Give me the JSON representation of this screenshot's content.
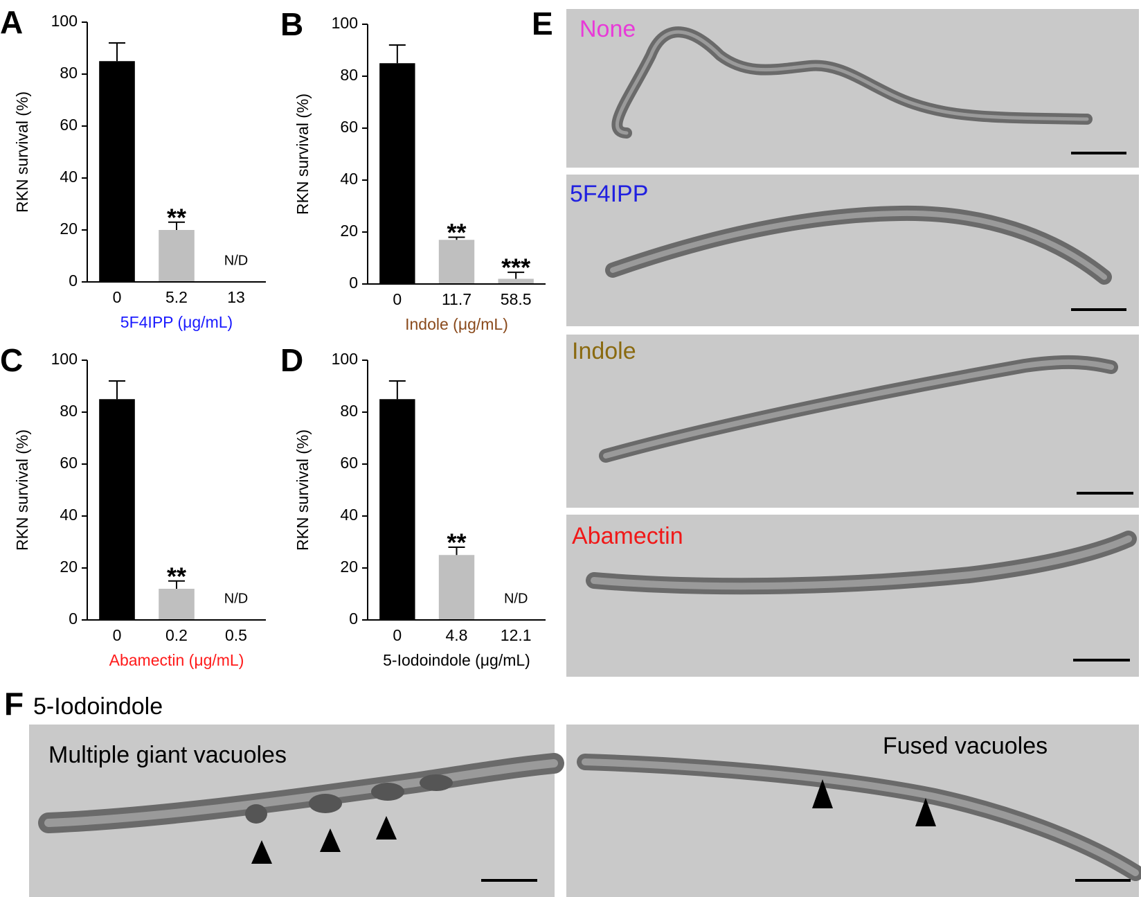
{
  "chart_data": [
    {
      "type": "bar",
      "panel": "A",
      "ylabel": "RKN survival (%)",
      "xlabel": "5F4IPP (μg/mL)",
      "xlabel_color": "#1a1aff",
      "categories": [
        "0",
        "5.2",
        "13"
      ],
      "values": [
        85,
        20,
        null
      ],
      "errors": [
        7,
        3,
        null
      ],
      "annotations": [
        null,
        "**",
        "N/D"
      ],
      "colors": [
        "#000000",
        "#bfbfbf",
        "#bfbfbf"
      ],
      "ylim": [
        0,
        100
      ],
      "yticks": [
        0,
        20,
        40,
        60,
        80,
        100
      ]
    },
    {
      "type": "bar",
      "panel": "B",
      "ylabel": "RKN survival (%)",
      "xlabel": "Indole (μg/mL)",
      "xlabel_color": "#8a4a1c",
      "categories": [
        "0",
        "11.7",
        "58.5"
      ],
      "values": [
        85,
        17,
        2
      ],
      "errors": [
        7,
        1,
        2.5
      ],
      "annotations": [
        null,
        "**",
        "***"
      ],
      "colors": [
        "#000000",
        "#bfbfbf",
        "#bfbfbf"
      ],
      "ylim": [
        0,
        100
      ],
      "yticks": [
        0,
        20,
        40,
        60,
        80,
        100
      ]
    },
    {
      "type": "bar",
      "panel": "C",
      "ylabel": "RKN survival (%)",
      "xlabel": "Abamectin (μg/mL)",
      "xlabel_color": "#ff1a1a",
      "categories": [
        "0",
        "0.2",
        "0.5"
      ],
      "values": [
        85,
        12,
        null
      ],
      "errors": [
        7,
        3,
        null
      ],
      "annotations": [
        null,
        "**",
        "N/D"
      ],
      "colors": [
        "#000000",
        "#bfbfbf",
        "#bfbfbf"
      ],
      "ylim": [
        0,
        100
      ],
      "yticks": [
        0,
        20,
        40,
        60,
        80,
        100
      ]
    },
    {
      "type": "bar",
      "panel": "D",
      "ylabel": "RKN survival (%)",
      "xlabel": "5-Iodoindole (μg/mL)",
      "xlabel_color": "#000000",
      "categories": [
        "0",
        "4.8",
        "12.1"
      ],
      "values": [
        85,
        25,
        null
      ],
      "errors": [
        7,
        3,
        null
      ],
      "annotations": [
        null,
        "**",
        "N/D"
      ],
      "colors": [
        "#000000",
        "#bfbfbf",
        "#bfbfbf"
      ],
      "ylim": [
        0,
        100
      ],
      "yticks": [
        0,
        20,
        40,
        60,
        80,
        100
      ]
    }
  ],
  "figure": {
    "panel_e": {
      "label": "E",
      "images": [
        "None",
        "5F4IPP",
        "Indole",
        "Abamectin"
      ]
    },
    "panel_f": {
      "label": "F",
      "title": "5-Iodoindole",
      "images": [
        "Multiple giant vacuoles",
        "Fused vacuoles"
      ]
    }
  }
}
